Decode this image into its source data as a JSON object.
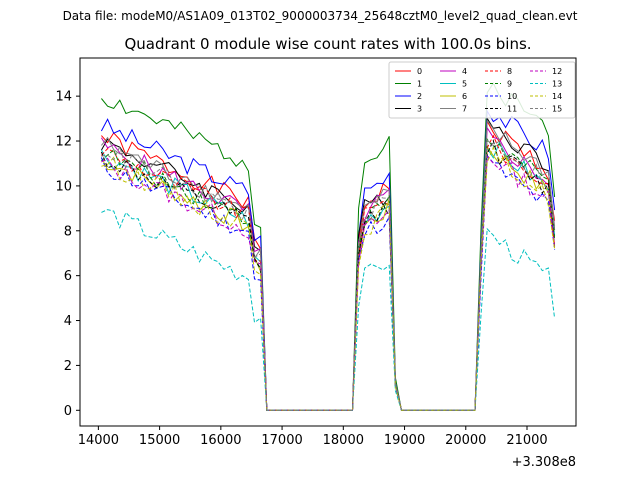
{
  "figure": {
    "subtitle": "Data file: modeM0/AS1A09_013T02_9000003734_25648cztM0_level2_quad_clean.evt"
  },
  "chart_data": {
    "type": "line",
    "title": "Quadrant 0 module wise count rates with 100.0s bins.",
    "xlabel": "",
    "ylabel": "",
    "x_offset_label": "+3.308e8",
    "xlim": [
      13700,
      21800
    ],
    "ylim": [
      -0.7,
      15.7
    ],
    "xticks": [
      14000,
      15000,
      16000,
      17000,
      18000,
      19000,
      20000,
      21000
    ],
    "yticks": [
      0,
      2,
      4,
      6,
      8,
      10,
      12,
      14
    ],
    "grid": false,
    "legend": {
      "placement": "top-right",
      "columns": 4
    },
    "segments": [
      {
        "start": 14050,
        "end": 16650
      },
      {
        "start": 18250,
        "end": 18850
      },
      {
        "start": 20250,
        "end": 21450
      }
    ],
    "series": [
      {
        "name": "0",
        "color": "#ff0000",
        "style": "solid",
        "level": 11.2,
        "top_level": 12.9,
        "dip": 0.8
      },
      {
        "name": "1",
        "color": "#008000",
        "style": "solid",
        "level": 13.0,
        "top_level": 14.8,
        "dip": 0.78
      },
      {
        "name": "2",
        "color": "#0000ff",
        "style": "solid",
        "level": 11.7,
        "top_level": 13.7,
        "dip": 0.8
      },
      {
        "name": "3",
        "color": "#000000",
        "style": "solid",
        "level": 11.0,
        "top_level": 13.1,
        "dip": 0.82
      },
      {
        "name": "4",
        "color": "#bf00bf",
        "style": "solid",
        "level": 10.8,
        "top_level": 12.4,
        "dip": 0.8
      },
      {
        "name": "5",
        "color": "#00bfbf",
        "style": "solid",
        "level": 10.4,
        "top_level": 12.1,
        "dip": 0.8
      },
      {
        "name": "6",
        "color": "#bfbf00",
        "style": "solid",
        "level": 10.2,
        "top_level": 11.9,
        "dip": 0.8
      },
      {
        "name": "7",
        "color": "#808080",
        "style": "solid",
        "level": 10.9,
        "top_level": 12.8,
        "dip": 0.8
      },
      {
        "name": "8",
        "color": "#ff0000",
        "style": "dashed",
        "level": 10.6,
        "top_level": 12.2,
        "dip": 0.8
      },
      {
        "name": "9",
        "color": "#008000",
        "style": "dashed",
        "level": 10.5,
        "top_level": 12.3,
        "dip": 0.8
      },
      {
        "name": "10",
        "color": "#0000ff",
        "style": "dashed",
        "level": 9.9,
        "top_level": 11.3,
        "dip": 0.74
      },
      {
        "name": "11",
        "color": "#000000",
        "style": "dashed",
        "level": 10.3,
        "top_level": 12.0,
        "dip": 0.8
      },
      {
        "name": "12",
        "color": "#bf00bf",
        "style": "dashed",
        "level": 10.0,
        "top_level": 11.6,
        "dip": 0.8
      },
      {
        "name": "13",
        "color": "#00bfbf",
        "style": "dashed",
        "level": 7.9,
        "top_level": 8.1,
        "dip": 0.72
      },
      {
        "name": "14",
        "color": "#bfbf00",
        "style": "dashed",
        "level": 10.1,
        "top_level": 11.7,
        "dip": 0.8
      },
      {
        "name": "15",
        "color": "#808080",
        "style": "dashed",
        "level": 10.7,
        "top_level": 12.4,
        "dip": 0.8
      }
    ]
  }
}
